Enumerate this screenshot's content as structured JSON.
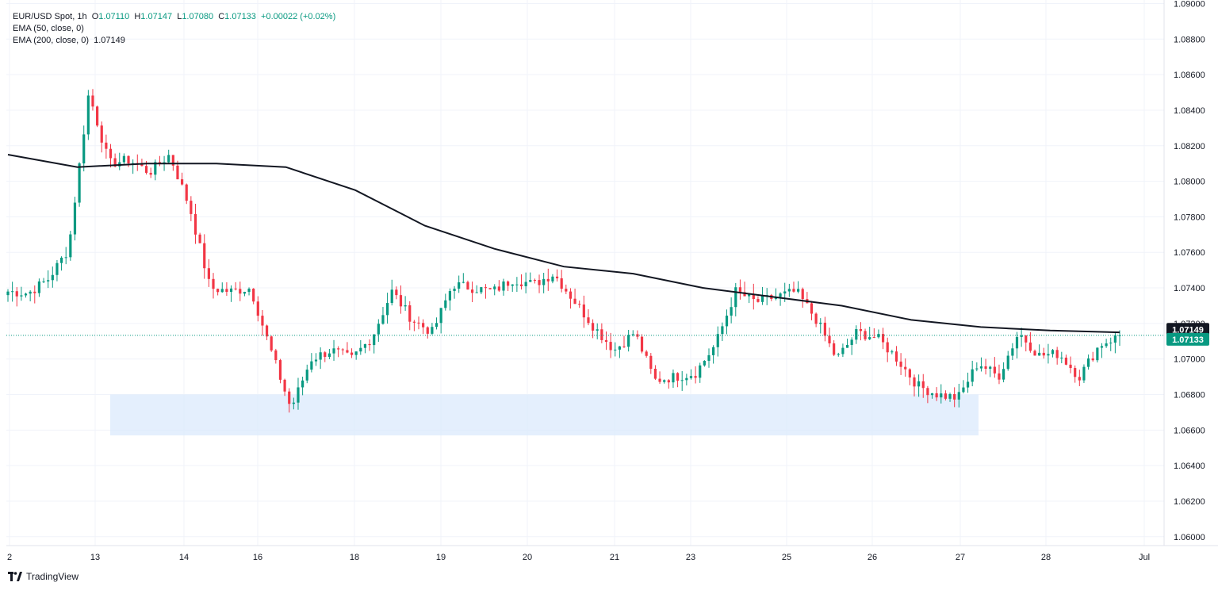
{
  "legend": {
    "symbol": "EUR/USD Spot",
    "interval": "1h",
    "o_label": "O",
    "o_value": "1.07110",
    "h_label": "H",
    "h_value": "1.07147",
    "l_label": "L",
    "l_value": "1.07080",
    "c_label": "C",
    "c_value": "1.07133",
    "change": "+0.00022 (+0.02%)",
    "ema50": "EMA (50, close, 0)",
    "ema200": "EMA (200, close, 0)",
    "ema200_value": "1.07149"
  },
  "price_labels": {
    "ema": "1.07149",
    "last": "1.07133"
  },
  "brand": "TradingView",
  "colors": {
    "up": "#089981",
    "down": "#f23645",
    "ema": "#131722",
    "zone": "#dbe9fc",
    "lastline": "#089981"
  },
  "chart_data": {
    "type": "candlestick",
    "ylim": [
      1.0595,
      1.0902
    ],
    "yticks": [
      "1.06000",
      "1.06200",
      "1.06400",
      "1.06600",
      "1.06800",
      "1.07000",
      "1.07200",
      "1.07400",
      "1.07600",
      "1.07800",
      "1.08000",
      "1.08200",
      "1.08400",
      "1.08600",
      "1.08800",
      "1.09000"
    ],
    "xticks": [
      "2",
      "13",
      "14",
      "16",
      "18",
      "19",
      "20",
      "21",
      "23",
      "25",
      "26",
      "27",
      "28",
      "Jul"
    ],
    "support_zone": {
      "from_date": "13",
      "to_date": "27",
      "low": 1.0657,
      "high": 1.068
    },
    "anchors": [
      {
        "p": 1.0738
      },
      {
        "p": 1.0737
      },
      {
        "p": 1.0745
      },
      {
        "p": 1.0762
      },
      {
        "p": 1.085
      },
      {
        "p": 1.081
      },
      {
        "p": 1.0812
      },
      {
        "p": 1.0805
      },
      {
        "p": 1.0815
      },
      {
        "p": 1.0785
      },
      {
        "p": 1.074
      },
      {
        "p": 1.0738
      },
      {
        "p": 1.074
      },
      {
        "p": 1.0705
      },
      {
        "p": 1.0672
      },
      {
        "p": 1.07
      },
      {
        "p": 1.0705
      },
      {
        "p": 1.07
      },
      {
        "p": 1.0712
      },
      {
        "p": 1.0738
      },
      {
        "p": 1.0722
      },
      {
        "p": 1.0715
      },
      {
        "p": 1.0742
      },
      {
        "p": 1.074
      },
      {
        "p": 1.0738
      },
      {
        "p": 1.0745
      },
      {
        "p": 1.0742
      },
      {
        "p": 1.0748
      },
      {
        "p": 1.0733
      },
      {
        "p": 1.0718
      },
      {
        "p": 1.0705
      },
      {
        "p": 1.0715
      },
      {
        "p": 1.0688
      },
      {
        "p": 1.069
      },
      {
        "p": 1.0692
      },
      {
        "p": 1.0708
      },
      {
        "p": 1.0738
      },
      {
        "p": 1.0732
      },
      {
        "p": 1.0735
      },
      {
        "p": 1.0738
      },
      {
        "p": 1.0722
      },
      {
        "p": 1.07
      },
      {
        "p": 1.0715
      },
      {
        "p": 1.0712
      },
      {
        "p": 1.07
      },
      {
        "p": 1.0685
      },
      {
        "p": 1.068
      },
      {
        "p": 1.0678
      },
      {
        "p": 1.0698
      },
      {
        "p": 1.069
      },
      {
        "p": 1.0715
      },
      {
        "p": 1.0702
      },
      {
        "p": 1.0703
      },
      {
        "p": 1.069
      },
      {
        "p": 1.0708
      },
      {
        "p": 1.0713
      }
    ],
    "ema200": [
      {
        "p": 1.0815
      },
      {
        "p": 1.0808
      },
      {
        "p": 1.081
      },
      {
        "p": 1.081
      },
      {
        "p": 1.0808
      },
      {
        "p": 1.0795
      },
      {
        "p": 1.0775
      },
      {
        "p": 1.0762
      },
      {
        "p": 1.0752
      },
      {
        "p": 1.0748
      },
      {
        "p": 1.074
      },
      {
        "p": 1.0735
      },
      {
        "p": 1.073
      },
      {
        "p": 1.0722
      },
      {
        "p": 1.0718
      },
      {
        "p": 1.0716
      },
      {
        "p": 1.0715
      }
    ]
  }
}
